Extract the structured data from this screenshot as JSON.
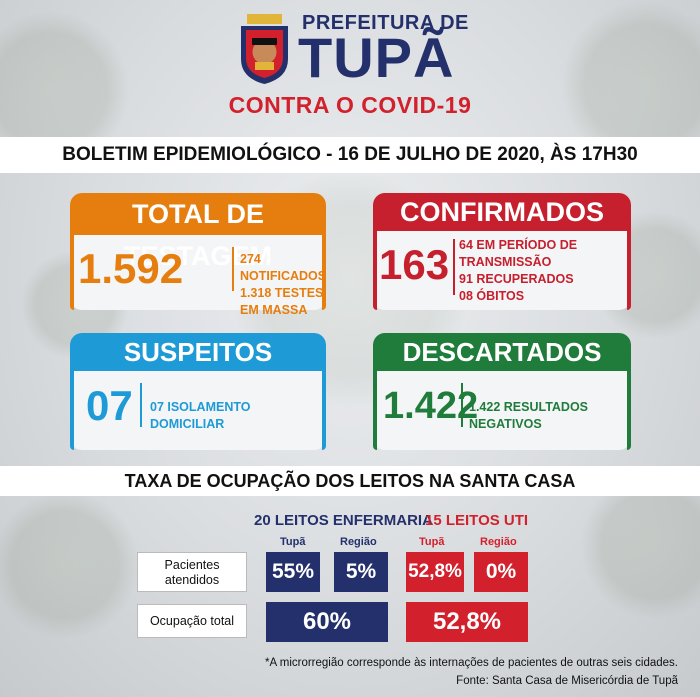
{
  "header": {
    "prefeitura": "PREFEITURA DE",
    "city": "TUPÃ",
    "campaign": "CONTRA O COVID-19"
  },
  "bulletin_title": "BOLETIM EPIDEMIOLÓGICO - 16 DE JULHO DE 2020, ÀS 17H30",
  "cards": {
    "testagem": {
      "title": "TOTAL DE TESTAGEM",
      "value": "1.592",
      "lines": [
        "274 NOTIFICADOS",
        "1.318 TESTES EM MASSA"
      ],
      "color": "#e67e0f"
    },
    "confirmados": {
      "title": "CONFIRMADOS",
      "value": "163",
      "lines": [
        "64 EM PERÍODO DE TRANSMISSÃO",
        "91 RECUPERADOS",
        "08 ÓBITOS"
      ],
      "color": "#c61f2d"
    },
    "suspeitos": {
      "title": "SUSPEITOS",
      "value": "07",
      "lines": [
        "07 ISOLAMENTO DOMICILIAR"
      ],
      "color": "#1e9ad6"
    },
    "descartados": {
      "title": "DESCARTADOS",
      "value": "1.422",
      "lines": [
        "1.422 RESULTADOS NEGATIVOS"
      ],
      "color": "#1f7c3b"
    }
  },
  "occupancy": {
    "title": "TAXA DE OCUPAÇÃO DOS LEITOS NA SANTA CASA",
    "enfermaria": {
      "heading": "20 LEITOS ENFERMARIA",
      "col_tupa": "Tupã",
      "col_regiao": "Região",
      "tupa": "55%",
      "regiao": "5%",
      "total": "60%",
      "color": "#23306b"
    },
    "uti": {
      "heading": "15 LEITOS UTI",
      "col_tupa": "Tupã",
      "col_regiao": "Região",
      "tupa": "52,8%",
      "regiao": "0%",
      "total": "52,8%",
      "color": "#d2212c"
    },
    "row_patients": "Pacientes atendidos",
    "row_total": "Ocupação total"
  },
  "footnotes": {
    "note": "*A microrregião corresponde às internações de pacientes de outras seis cidades.",
    "source": "Fonte: Santa Casa de Misericórdia de Tupã"
  }
}
